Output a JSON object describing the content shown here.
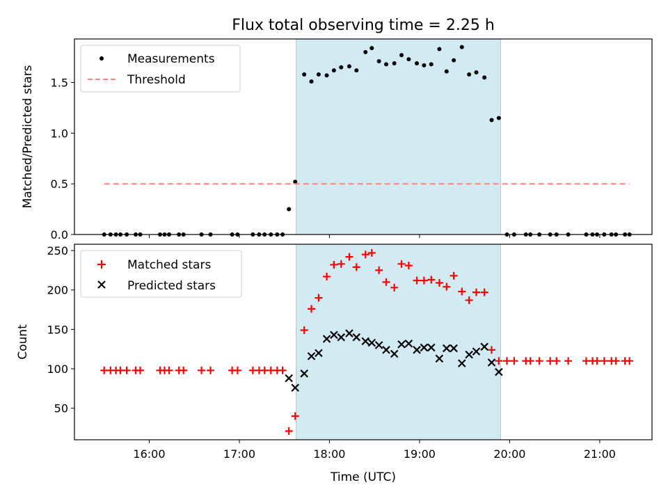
{
  "figure": {
    "title": "Flux total observing time = 2.25 h",
    "xlabel": "Time (UTC)",
    "x_tick_labels": [
      "16:00",
      "17:00",
      "18:00",
      "19:00",
      "20:00",
      "21:00"
    ],
    "shaded_region_color": "#add8e6"
  },
  "chart_data": [
    {
      "type": "scatter",
      "title": "Flux total observing time = 2.25 h",
      "xlabel": "",
      "ylabel": "Matched/Predicted stars",
      "x_unit": "hours UTC",
      "xlim": [
        15.17,
        21.58
      ],
      "ylim": [
        0,
        1.93
      ],
      "y_ticks": [
        0.0,
        0.5,
        1.0,
        1.5
      ],
      "y_tick_labels": [
        "0.0",
        "0.5",
        "1.0",
        "1.5"
      ],
      "legend_position": "top-left",
      "shaded_x_range": [
        17.63,
        19.9
      ],
      "series": [
        {
          "name": "Measurements",
          "marker": "dot",
          "color": "#000000",
          "x": [
            15.5,
            15.57,
            15.63,
            15.68,
            15.75,
            15.85,
            15.9,
            16.12,
            16.17,
            16.22,
            16.33,
            16.38,
            16.58,
            16.68,
            16.92,
            16.98,
            17.15,
            17.22,
            17.28,
            17.35,
            17.42,
            17.48,
            17.55,
            17.62,
            17.72,
            17.8,
            17.88,
            17.97,
            18.05,
            18.13,
            18.22,
            18.3,
            18.4,
            18.47,
            18.55,
            18.63,
            18.72,
            18.8,
            18.88,
            18.97,
            19.05,
            19.13,
            19.22,
            19.3,
            19.38,
            19.47,
            19.55,
            19.63,
            19.72,
            19.8,
            19.88,
            19.97,
            20.05,
            20.18,
            20.23,
            20.33,
            20.45,
            20.52,
            20.65,
            20.85,
            20.92,
            20.97,
            21.05,
            21.13,
            21.18,
            21.28,
            21.33
          ],
          "y": [
            0,
            0,
            0,
            0,
            0,
            0,
            0,
            0,
            0,
            0,
            0,
            0,
            0,
            0,
            0,
            0,
            0,
            0,
            0,
            0,
            0,
            0,
            0.25,
            0.52,
            1.58,
            1.51,
            1.58,
            1.57,
            1.62,
            1.65,
            1.66,
            1.62,
            1.8,
            1.84,
            1.71,
            1.68,
            1.69,
            1.77,
            1.73,
            1.69,
            1.67,
            1.68,
            1.83,
            1.61,
            1.72,
            1.85,
            1.58,
            1.6,
            1.55,
            1.13,
            1.15,
            0,
            0,
            0,
            0,
            0,
            0,
            0,
            0,
            0,
            0,
            0,
            0,
            0,
            0,
            0,
            0
          ]
        },
        {
          "name": "Threshold",
          "marker": "dashed-line",
          "color": "#ff8080",
          "x": [
            15.5,
            21.33
          ],
          "y": [
            0.5,
            0.5
          ]
        }
      ]
    },
    {
      "type": "scatter",
      "title": "",
      "xlabel": "Time (UTC)",
      "ylabel": "Count",
      "x_unit": "hours UTC",
      "xlim": [
        15.17,
        21.58
      ],
      "ylim": [
        10,
        258
      ],
      "y_ticks": [
        50,
        100,
        150,
        200,
        250
      ],
      "y_tick_labels": [
        "50",
        "100",
        "150",
        "200",
        "250"
      ],
      "legend_position": "top-left",
      "shaded_x_range": [
        17.63,
        19.9
      ],
      "series": [
        {
          "name": "Matched stars",
          "marker": "plus",
          "color": "#ff0000",
          "x": [
            15.5,
            15.57,
            15.63,
            15.68,
            15.75,
            15.85,
            15.9,
            16.12,
            16.17,
            16.22,
            16.33,
            16.38,
            16.58,
            16.68,
            16.92,
            16.98,
            17.15,
            17.22,
            17.28,
            17.35,
            17.42,
            17.48,
            17.55,
            17.62,
            17.72,
            17.8,
            17.88,
            17.97,
            18.05,
            18.13,
            18.22,
            18.3,
            18.4,
            18.47,
            18.55,
            18.63,
            18.72,
            18.8,
            18.88,
            18.97,
            19.05,
            19.13,
            19.22,
            19.3,
            19.38,
            19.47,
            19.55,
            19.63,
            19.72,
            19.8,
            19.88,
            19.97,
            20.05,
            20.18,
            20.23,
            20.33,
            20.45,
            20.52,
            20.65,
            20.85,
            20.92,
            20.97,
            21.05,
            21.13,
            21.18,
            21.28,
            21.33
          ],
          "y": [
            98,
            98,
            98,
            98,
            98,
            98,
            98,
            98,
            98,
            98,
            98,
            98,
            98,
            98,
            98,
            98,
            98,
            98,
            98,
            98,
            98,
            98,
            21,
            40,
            149,
            176,
            190,
            217,
            232,
            233,
            242,
            229,
            245,
            247,
            225,
            210,
            203,
            233,
            231,
            212,
            212,
            213,
            209,
            204,
            218,
            198,
            187,
            197,
            197,
            124,
            110,
            110,
            110,
            110,
            110,
            110,
            110,
            110,
            110,
            110,
            110,
            110,
            110,
            110,
            110,
            110,
            110
          ]
        },
        {
          "name": "Predicted stars",
          "marker": "x",
          "color": "#000000",
          "x": [
            17.55,
            17.62,
            17.72,
            17.8,
            17.88,
            17.97,
            18.05,
            18.13,
            18.22,
            18.3,
            18.4,
            18.47,
            18.55,
            18.63,
            18.72,
            18.8,
            18.88,
            18.97,
            19.05,
            19.13,
            19.22,
            19.3,
            19.38,
            19.47,
            19.55,
            19.63,
            19.72,
            19.8,
            19.88
          ],
          "y": [
            88,
            76,
            94,
            116,
            120,
            138,
            143,
            140,
            145,
            140,
            135,
            133,
            130,
            124,
            119,
            131,
            132,
            124,
            127,
            127,
            113,
            126,
            126,
            107,
            118,
            122,
            128,
            108,
            96
          ]
        }
      ]
    }
  ]
}
